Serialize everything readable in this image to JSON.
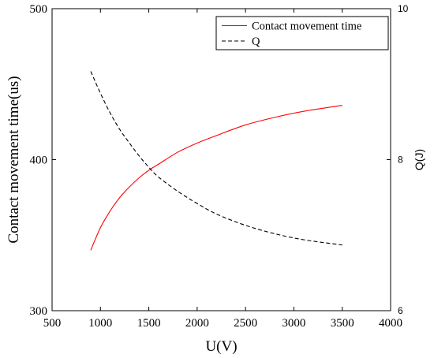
{
  "chart_data": {
    "type": "line",
    "xlabel": "U(V)",
    "ylabel": "Contact movement time(us)",
    "y2label": "Q(J)",
    "xlim": [
      500,
      4000
    ],
    "ylim": [
      300,
      500
    ],
    "y2lim": [
      6,
      10
    ],
    "x_ticks": [
      "500",
      "1000",
      "1500",
      "2000",
      "2500",
      "3000",
      "3500",
      "4000"
    ],
    "y_ticks": [
      "300",
      "400",
      "500"
    ],
    "y2_ticks": [
      "6",
      "8",
      "10"
    ],
    "grid": false,
    "legend_position": "top-right",
    "series": [
      {
        "name": "Contact movement time",
        "axis": "left",
        "color": "#ff0000",
        "dash": "solid",
        "x": [
          900,
          1000,
          1100,
          1200,
          1300,
          1400,
          1500,
          1600,
          1800,
          2000,
          2200,
          2500,
          2800,
          3100,
          3500
        ],
        "y": [
          340,
          355,
          366,
          375,
          382,
          388,
          393,
          397,
          405,
          411,
          416,
          423,
          428,
          432,
          436
        ]
      },
      {
        "name": "Q",
        "axis": "right",
        "color": "#000000",
        "dash": "dashed",
        "x": [
          900,
          1000,
          1100,
          1200,
          1300,
          1400,
          1500,
          1600,
          1800,
          2000,
          2200,
          2500,
          2800,
          3100,
          3500
        ],
        "y": [
          9.17,
          8.88,
          8.62,
          8.4,
          8.22,
          8.05,
          7.9,
          7.77,
          7.58,
          7.42,
          7.28,
          7.13,
          7.02,
          6.94,
          6.87
        ]
      }
    ]
  }
}
